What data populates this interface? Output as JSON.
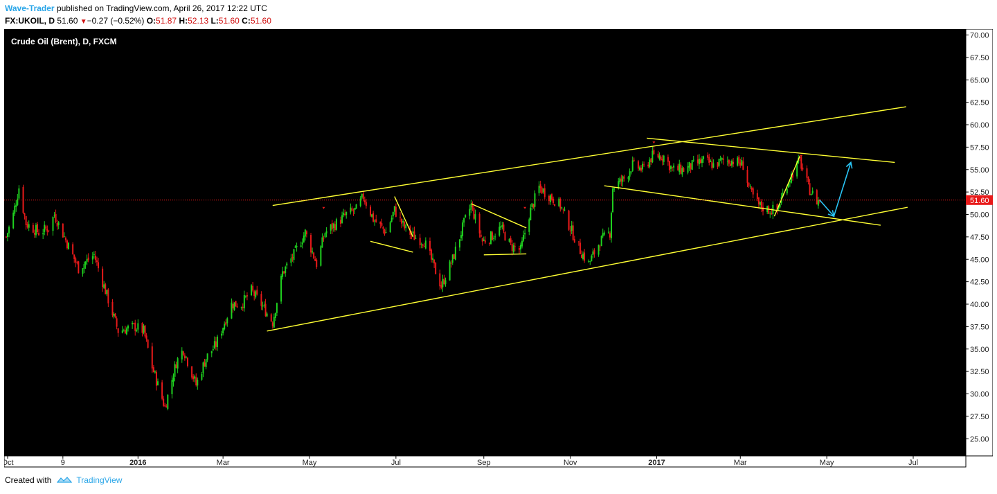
{
  "header": {
    "author": "Wave-Trader",
    "published_text": "published on TradingView.com, April 26, 2017 12:22 UTC",
    "symbol": "FX:UKOIL, D",
    "last": "51.60",
    "change": "−0.27 (−0.52%)",
    "o_label": "O:",
    "o": "51.87",
    "h_label": "H:",
    "h": "52.13",
    "l_label": "L:",
    "l": "51.60",
    "c_label": "C:",
    "c": "51.60"
  },
  "footer": {
    "created_with": "Created with",
    "brand": "TradingView",
    "icon": "tradingview-logo-icon"
  },
  "colors": {
    "up": "#1fd11f",
    "down": "#e81a1a",
    "trendline": "#ffff33",
    "projection": "#29c5f6",
    "background": "#000000",
    "price_label": "#e81a1a"
  },
  "chart_data": {
    "type": "candlestick",
    "title": "Crude Oil (Brent), D, FXCM",
    "timeframe": "D",
    "y_axis": {
      "min": 25.0,
      "max": 70.0,
      "step": 2.5,
      "position": "right",
      "ticks": [
        "70.00",
        "67.50",
        "65.00",
        "62.50",
        "60.00",
        "57.50",
        "55.00",
        "52.50",
        "50.00",
        "47.50",
        "45.00",
        "42.50",
        "40.00",
        "37.50",
        "35.00",
        "32.50",
        "30.00",
        "27.50",
        "25.00"
      ]
    },
    "x_axis": {
      "ticks": [
        {
          "date": "2015-10-01",
          "label": "Oct",
          "bold": false
        },
        {
          "date": "2015-11-09",
          "label": "9",
          "bold": false
        },
        {
          "date": "2016-01-01",
          "label": "2016",
          "bold": true
        },
        {
          "date": "2016-03-01",
          "label": "Mar",
          "bold": false
        },
        {
          "date": "2016-05-01",
          "label": "May",
          "bold": false
        },
        {
          "date": "2016-07-01",
          "label": "Jul",
          "bold": false
        },
        {
          "date": "2016-09-01",
          "label": "Sep",
          "bold": false
        },
        {
          "date": "2016-11-01",
          "label": "Nov",
          "bold": false
        },
        {
          "date": "2017-01-01",
          "label": "2017",
          "bold": true
        },
        {
          "date": "2017-03-01",
          "label": "Mar",
          "bold": false
        },
        {
          "date": "2017-05-01",
          "label": "May",
          "bold": false
        },
        {
          "date": "2017-07-01",
          "label": "Jul",
          "bold": false
        }
      ]
    },
    "current_price": {
      "value": 51.6,
      "label": "51.60"
    },
    "price_path": [
      [
        "2015-09-30",
        47.5
      ],
      [
        "2015-10-05",
        50.0
      ],
      [
        "2015-10-09",
        53.0
      ],
      [
        "2015-10-14",
        49.0
      ],
      [
        "2015-10-23",
        48.0
      ],
      [
        "2015-10-30",
        48.5
      ],
      [
        "2015-11-03",
        50.0
      ],
      [
        "2015-11-10",
        47.5
      ],
      [
        "2015-11-20",
        44.0
      ],
      [
        "2015-12-01",
        45.5
      ],
      [
        "2015-12-10",
        41.0
      ],
      [
        "2015-12-18",
        37.0
      ],
      [
        "2015-12-30",
        37.5
      ],
      [
        "2016-01-05",
        37.0
      ],
      [
        "2016-01-11",
        33.0
      ],
      [
        "2016-01-20",
        28.5
      ],
      [
        "2016-01-28",
        33.5
      ],
      [
        "2016-02-02",
        35.0
      ],
      [
        "2016-02-11",
        31.0
      ],
      [
        "2016-02-18",
        34.0
      ],
      [
        "2016-02-25",
        35.5
      ],
      [
        "2016-03-07",
        40.0
      ],
      [
        "2016-03-14",
        40.0
      ],
      [
        "2016-03-21",
        41.5
      ],
      [
        "2016-03-28",
        40.0
      ],
      [
        "2016-04-05",
        38.0
      ],
      [
        "2016-04-12",
        43.5
      ],
      [
        "2016-04-20",
        45.5
      ],
      [
        "2016-04-28",
        48.0
      ],
      [
        "2016-05-06",
        44.5
      ],
      [
        "2016-05-12",
        48.0
      ],
      [
        "2016-05-20",
        49.0
      ],
      [
        "2016-05-27",
        50.0
      ],
      [
        "2016-06-03",
        50.5
      ],
      [
        "2016-06-08",
        52.0
      ],
      [
        "2016-06-15",
        49.5
      ],
      [
        "2016-06-24",
        48.0
      ],
      [
        "2016-06-30",
        50.5
      ],
      [
        "2016-07-07",
        48.5
      ],
      [
        "2016-07-14",
        47.5
      ],
      [
        "2016-07-21",
        47.0
      ],
      [
        "2016-07-27",
        44.5
      ],
      [
        "2016-08-02",
        42.0
      ],
      [
        "2016-08-10",
        45.0
      ],
      [
        "2016-08-18",
        49.0
      ],
      [
        "2016-08-23",
        51.0
      ],
      [
        "2016-08-31",
        47.0
      ],
      [
        "2016-09-06",
        47.5
      ],
      [
        "2016-09-13",
        48.5
      ],
      [
        "2016-09-20",
        46.5
      ],
      [
        "2016-09-27",
        46.0
      ],
      [
        "2016-10-03",
        50.0
      ],
      [
        "2016-10-10",
        53.0
      ],
      [
        "2016-10-18",
        52.0
      ],
      [
        "2016-10-25",
        51.0
      ],
      [
        "2016-11-01",
        48.5
      ],
      [
        "2016-11-08",
        46.0
      ],
      [
        "2016-11-14",
        44.5
      ],
      [
        "2016-11-22",
        47.0
      ],
      [
        "2016-11-29",
        48.0
      ],
      [
        "2016-12-01",
        53.0
      ],
      [
        "2016-12-09",
        54.0
      ],
      [
        "2016-12-15",
        55.5
      ],
      [
        "2016-12-22",
        55.0
      ],
      [
        "2016-12-29",
        56.5
      ],
      [
        "2017-01-06",
        56.5
      ],
      [
        "2017-01-12",
        55.0
      ],
      [
        "2017-01-20",
        55.0
      ],
      [
        "2017-01-27",
        55.5
      ],
      [
        "2017-02-03",
        56.0
      ],
      [
        "2017-02-10",
        55.5
      ],
      [
        "2017-02-17",
        56.0
      ],
      [
        "2017-02-24",
        56.0
      ],
      [
        "2017-03-03",
        55.5
      ],
      [
        "2017-03-08",
        52.5
      ],
      [
        "2017-03-14",
        51.0
      ],
      [
        "2017-03-21",
        50.5
      ],
      [
        "2017-03-27",
        50.5
      ],
      [
        "2017-04-03",
        53.5
      ],
      [
        "2017-04-10",
        55.5
      ],
      [
        "2017-04-12",
        56.0
      ],
      [
        "2017-04-18",
        53.0
      ],
      [
        "2017-04-24",
        51.5
      ],
      [
        "2017-04-26",
        51.6
      ]
    ],
    "trendlines": [
      {
        "name": "channel-upper",
        "p1": [
          "2016-04-05",
          51.0
        ],
        "p2": [
          "2017-06-26",
          62.0
        ]
      },
      {
        "name": "channel-lower",
        "p1": [
          "2016-04-01",
          37.0
        ],
        "p2": [
          "2017-06-27",
          50.8
        ]
      },
      {
        "name": "triangle-upper",
        "p1": [
          "2016-12-25",
          58.5
        ],
        "p2": [
          "2017-06-18",
          55.8
        ]
      },
      {
        "name": "triangle-lower",
        "p1": [
          "2016-11-25",
          53.2
        ],
        "p2": [
          "2017-06-08",
          48.8
        ]
      },
      {
        "name": "flag1-top",
        "p1": [
          "2016-06-30",
          52.0
        ],
        "p2": [
          "2016-07-13",
          47.5
        ]
      },
      {
        "name": "flag1-bottom",
        "p1": [
          "2016-06-13",
          47.0
        ],
        "p2": [
          "2016-07-13",
          45.8
        ]
      },
      {
        "name": "flag2-top",
        "p1": [
          "2016-08-23",
          51.2
        ],
        "p2": [
          "2016-10-01",
          48.5
        ]
      },
      {
        "name": "flag2-bottom",
        "p1": [
          "2016-09-01",
          45.5
        ],
        "p2": [
          "2016-10-01",
          45.6
        ]
      },
      {
        "name": "wave-leg",
        "p1": [
          "2017-03-25",
          49.8
        ],
        "p2": [
          "2017-04-12",
          56.5
        ]
      }
    ],
    "projection": [
      [
        "2017-04-26",
        51.6
      ],
      [
        "2017-05-06",
        49.8
      ],
      [
        "2017-05-18",
        55.8
      ]
    ],
    "markers": [
      {
        "date": "2016-05-11",
        "value": 50.6
      },
      {
        "date": "2016-09-30",
        "value": 50.6
      },
      {
        "date": "2016-12-30",
        "value": 57.9
      },
      {
        "date": "2017-04-13",
        "value": 56.4
      }
    ]
  }
}
